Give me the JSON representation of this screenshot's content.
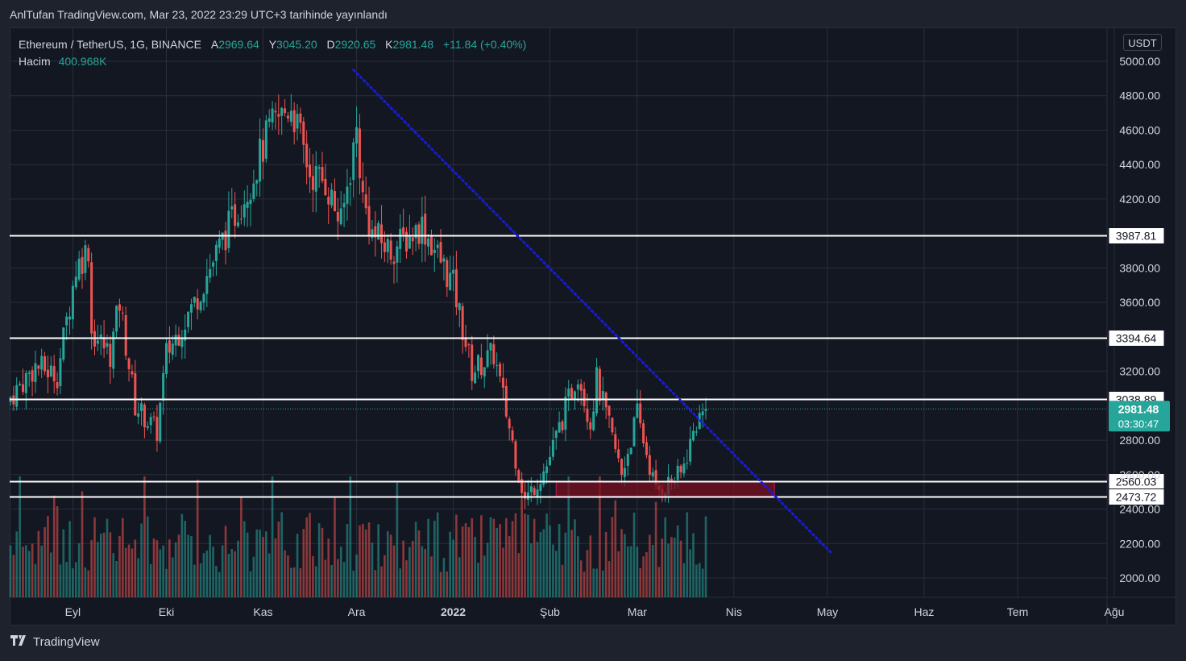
{
  "header": {
    "publish_line": "AnlTufan TradingView.com, Mar 23, 2022 23:29 UTC+3 tarihinde yayınlandı"
  },
  "legend": {
    "symbol": "Ethereum / TetherUS, 1G, BINANCE",
    "open_label": "A",
    "open": "2969.64",
    "high_label": "Y",
    "high": "3045.20",
    "low_label": "D",
    "low": "2920.65",
    "close_label": "K",
    "close": "2981.48",
    "change": "+11.84 (+0.40%)",
    "volume_label": "Hacim",
    "volume": "400.968K"
  },
  "currency": "USDT",
  "footer": {
    "brand": "TradingView"
  },
  "colors": {
    "up": "#26a69a",
    "down": "#ef5350",
    "trendline": "#1a1ad6",
    "zone": "#7a1020",
    "grid": "#2a2e39",
    "background": "#131722"
  },
  "chart_data": {
    "type": "candlestick",
    "symbol": "ETH/USDT",
    "timeframe": "1D",
    "exchange": "BINANCE",
    "x_axis_labels": [
      "Eyl",
      "Eki",
      "Kas",
      "Ara",
      "2022",
      "Şub",
      "Mar",
      "Nis",
      "May",
      "Haz",
      "Tem",
      "Ağu"
    ],
    "y_ticks": [
      2000,
      2200,
      2400,
      2600,
      2800,
      3200,
      3600,
      3800,
      4200,
      4400,
      4600,
      4800,
      5000
    ],
    "ylim": [
      1890,
      5060
    ],
    "price_series": {
      "start": "2021-08-12",
      "anchor_prices": [
        {
          "date": "2021-08-12",
          "close": 3050
        },
        {
          "date": "2021-08-20",
          "close": 3230
        },
        {
          "date": "2021-08-27",
          "close": 3180
        },
        {
          "date": "2021-09-02",
          "close": 3800
        },
        {
          "date": "2021-09-06",
          "close": 3920
        },
        {
          "date": "2021-09-07",
          "close": 3430
        },
        {
          "date": "2021-09-13",
          "close": 3300
        },
        {
          "date": "2021-09-16",
          "close": 3600
        },
        {
          "date": "2021-09-21",
          "close": 3000
        },
        {
          "date": "2021-09-28",
          "close": 2850
        },
        {
          "date": "2021-10-01",
          "close": 3300
        },
        {
          "date": "2021-10-10",
          "close": 3600
        },
        {
          "date": "2021-10-20",
          "close": 4000
        },
        {
          "date": "2021-10-28",
          "close": 4300
        },
        {
          "date": "2021-11-03",
          "close": 4600
        },
        {
          "date": "2021-11-10",
          "close": 4750
        },
        {
          "date": "2021-11-16",
          "close": 4350
        },
        {
          "date": "2021-11-21",
          "close": 4300
        },
        {
          "date": "2021-11-26",
          "close": 4050
        },
        {
          "date": "2021-12-01",
          "close": 4600
        },
        {
          "date": "2021-12-03",
          "close": 4200
        },
        {
          "date": "2021-12-06",
          "close": 4000
        },
        {
          "date": "2021-12-12",
          "close": 3900
        },
        {
          "date": "2021-12-22",
          "close": 4050
        },
        {
          "date": "2022-01-01",
          "close": 3700
        },
        {
          "date": "2022-01-07",
          "close": 3200
        },
        {
          "date": "2022-01-14",
          "close": 3300
        },
        {
          "date": "2022-01-21",
          "close": 2700
        },
        {
          "date": "2022-01-24",
          "close": 2450
        },
        {
          "date": "2022-01-31",
          "close": 2650
        },
        {
          "date": "2022-02-10",
          "close": 3200
        },
        {
          "date": "2022-02-14",
          "close": 2900
        },
        {
          "date": "2022-02-16",
          "close": 3150
        },
        {
          "date": "2022-02-24",
          "close": 2600
        },
        {
          "date": "2022-03-01",
          "close": 2950
        },
        {
          "date": "2022-03-07",
          "close": 2500
        },
        {
          "date": "2022-03-15",
          "close": 2600
        },
        {
          "date": "2022-03-20",
          "close": 2900
        },
        {
          "date": "2022-03-23",
          "close": 2981.48
        }
      ]
    },
    "horizontal_levels": [
      3987.81,
      3394.64,
      3038.89,
      2560.03,
      2473.72
    ],
    "current_price": 2981.48,
    "countdown": "03:30:47",
    "support_zone": {
      "from": 2473.72,
      "to": 2560.03,
      "start_date": "2022-02-03",
      "end_date": "2022-04-14"
    },
    "trendline": {
      "start_date": "2021-11-30",
      "start_price": 4950,
      "end_date": "2022-05-02",
      "end_price": 2150
    },
    "volume_label": "Hacim",
    "last_volume": "400.968K"
  }
}
